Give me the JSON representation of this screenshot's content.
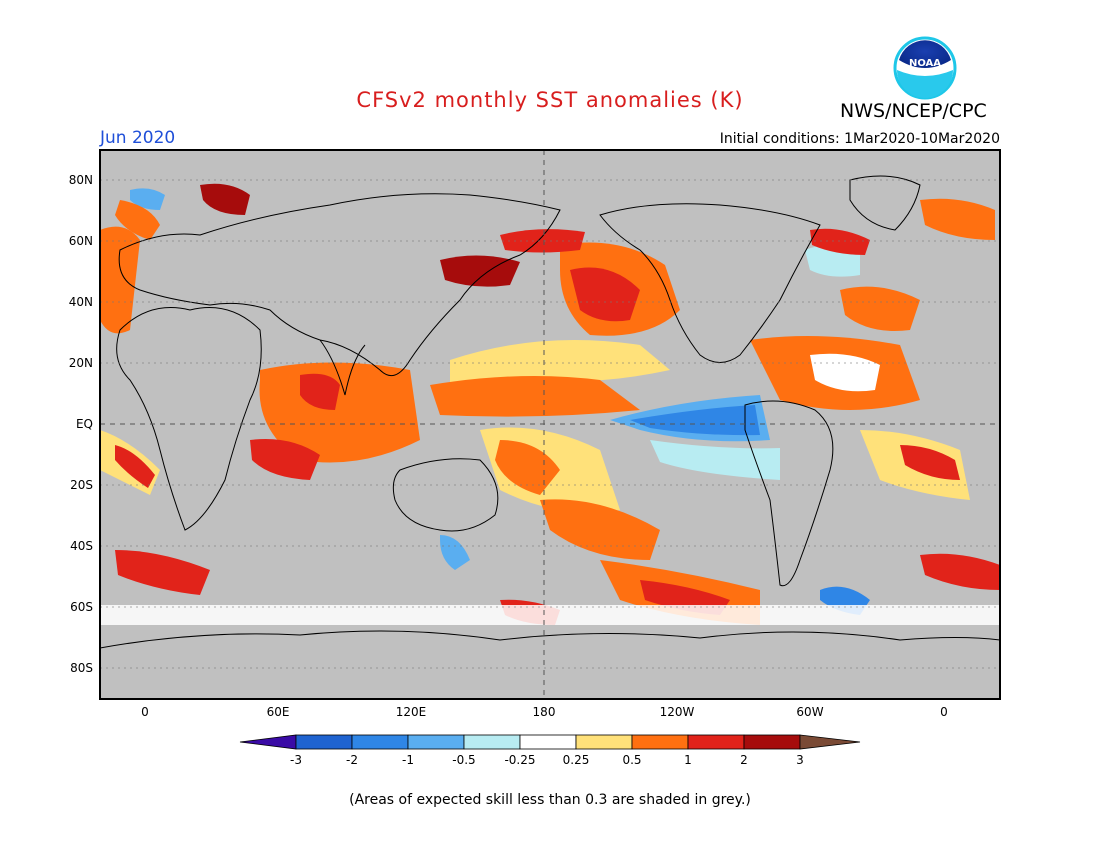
{
  "header": {
    "title": "CFSv2 monthly SST anomalies (K)",
    "agency": "NWS/NCEP/CPC",
    "month": "Jun 2020",
    "initial_conditions": "Initial conditions: 1Mar2020-10Mar2020",
    "logo_text": "NOAA"
  },
  "map": {
    "lat_labels": [
      "80N",
      "60N",
      "40N",
      "20N",
      "EQ",
      "20S",
      "40S",
      "60S",
      "80S"
    ],
    "lon_labels": [
      "0",
      "60E",
      "120E",
      "180",
      "120W",
      "60W",
      "0"
    ],
    "colors": {
      "land": "#c0c0c0",
      "coast": "#000000",
      "grid": "#555555"
    }
  },
  "colorbar": {
    "ticks": [
      "-3",
      "-2",
      "-1",
      "-0.5",
      "-0.25",
      "0.25",
      "0.5",
      "1",
      "2",
      "3"
    ],
    "colors": [
      "#3a0ba6",
      "#1f63d0",
      "#2f86e6",
      "#5aaef0",
      "#b8ecf2",
      "#ffffff",
      "#ffe17a",
      "#ff7011",
      "#e1231a",
      "#a60c0c",
      "#7a4a35"
    ]
  },
  "footnote": "(Areas of expected skill less than 0.3 are shaded in grey.)"
}
